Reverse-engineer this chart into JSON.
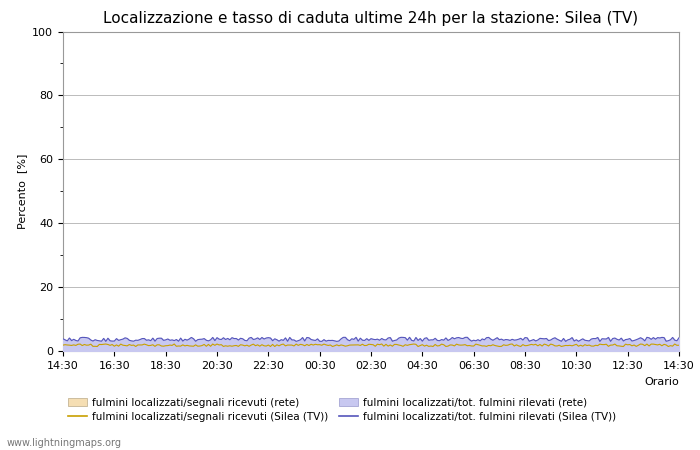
{
  "title": "Localizzazione e tasso di caduta ultime 24h per la stazione: Silea (TV)",
  "xlabel": "Orario",
  "ylabel": "Percento  [%]",
  "xlim_labels": [
    "14:30",
    "16:30",
    "18:30",
    "20:30",
    "22:30",
    "00:30",
    "02:30",
    "04:30",
    "06:30",
    "08:30",
    "10:30",
    "12:30",
    "14:30"
  ],
  "ylim": [
    0,
    100
  ],
  "yticks": [
    0,
    20,
    40,
    60,
    80,
    100
  ],
  "yticks_minor": [
    10,
    30,
    50,
    70,
    90
  ],
  "n_points": 289,
  "fill_rete_color": "#f5deb3",
  "fill_rete_alpha": 1.0,
  "fill_local_color": "#c8c8f0",
  "fill_local_alpha": 1.0,
  "line_rete_color": "#c8a000",
  "line_local_color": "#5555bb",
  "line_rete_linewidth": 0.8,
  "line_local_linewidth": 0.8,
  "background_color": "#ffffff",
  "plot_bg_color": "#ffffff",
  "grid_color": "#bbbbbb",
  "title_fontsize": 11,
  "axis_label_fontsize": 8,
  "tick_fontsize": 8,
  "watermark": "www.lightningmaps.org",
  "legend_labels": [
    "fulmini localizzati/segnali ricevuti (rete)",
    "fulmini localizzati/segnali ricevuti (Silea (TV))",
    "fulmini localizzati/tot. fulmini rilevati (rete)",
    "fulmini localizzati/tot. fulmini rilevati (Silea (TV))"
  ],
  "rete_fill_base": 1.8,
  "local_fill_base": 3.5,
  "rete_line_base": 1.8,
  "local_line_base": 3.5
}
